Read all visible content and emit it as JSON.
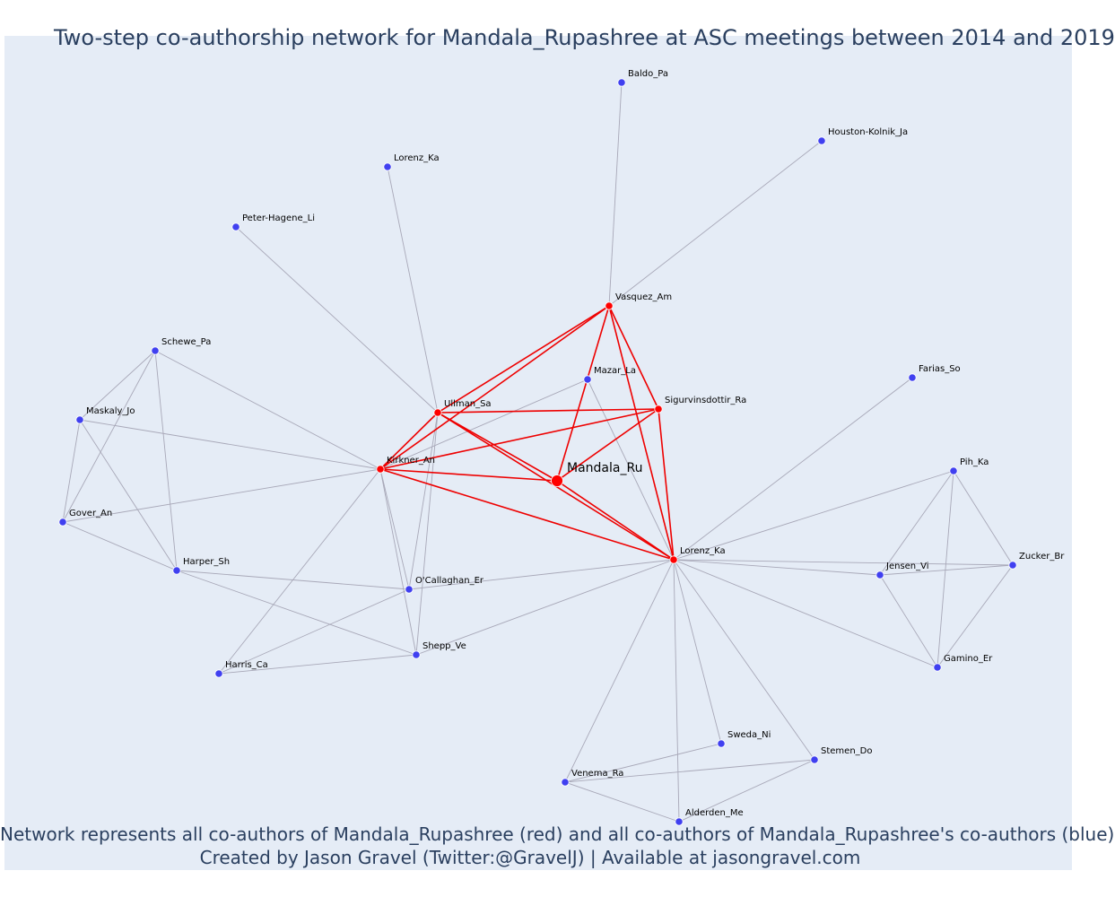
{
  "title": "Two-step co-authorship network for Mandala_Rupashree at ASC meetings between 2014 and 2019",
  "caption_line1": "Network represents all co-authors of Mandala_Rupashree (red) and all co-authors of Mandala_Rupashree's co-authors (blue)",
  "caption_line2": "Created by Jason Gravel (Twitter:@GravelJ) | Available at jasongravel.com",
  "colors": {
    "red": "#ff0000",
    "blue": "#4040f0",
    "edge_gray": "#a8a8b8",
    "edge_red": "#ee0000",
    "background": "#e5ecf6",
    "text": "#2a3f5f"
  },
  "focus": "mandala",
  "nodes": [
    {
      "id": "mandala",
      "label": "Mandala_Ru",
      "group": "red"
    },
    {
      "id": "vasquez",
      "label": "Vasquez_Am",
      "group": "red"
    },
    {
      "id": "ullman",
      "label": "Ullman_Sa",
      "group": "red"
    },
    {
      "id": "sigurvins",
      "label": "Sigurvinsdottir_Ra",
      "group": "red"
    },
    {
      "id": "kirkner",
      "label": "Kirkner_An",
      "group": "red"
    },
    {
      "id": "lorenz_r",
      "label": "Lorenz_Ka",
      "group": "red"
    },
    {
      "id": "baldo",
      "label": "Baldo_Pa",
      "group": "blue"
    },
    {
      "id": "houston",
      "label": "Houston-Kolnik_Ja",
      "group": "blue"
    },
    {
      "id": "lorenz_b",
      "label": "Lorenz_Ka",
      "group": "blue"
    },
    {
      "id": "peter",
      "label": "Peter-Hagene_Li",
      "group": "blue"
    },
    {
      "id": "schewe",
      "label": "Schewe_Pa",
      "group": "blue"
    },
    {
      "id": "mazar",
      "label": "Mazar_La",
      "group": "blue"
    },
    {
      "id": "farias",
      "label": "Farias_So",
      "group": "blue"
    },
    {
      "id": "maskaly",
      "label": "Maskaly_Jo",
      "group": "blue"
    },
    {
      "id": "pih",
      "label": "Pih_Ka",
      "group": "blue"
    },
    {
      "id": "gover",
      "label": "Gover_An",
      "group": "blue"
    },
    {
      "id": "zucker",
      "label": "Zucker_Br",
      "group": "blue"
    },
    {
      "id": "jensen",
      "label": "Jensen_Vi",
      "group": "blue"
    },
    {
      "id": "harper",
      "label": "Harper_Sh",
      "group": "blue"
    },
    {
      "id": "ocallaghan",
      "label": "O'Callaghan_Er",
      "group": "blue"
    },
    {
      "id": "shepp",
      "label": "Shepp_Ve",
      "group": "blue"
    },
    {
      "id": "harris",
      "label": "Harris_Ca",
      "group": "blue"
    },
    {
      "id": "gamino",
      "label": "Gamino_Er",
      "group": "blue"
    },
    {
      "id": "sweda",
      "label": "Sweda_Ni",
      "group": "blue"
    },
    {
      "id": "stemen",
      "label": "Stemen_Do",
      "group": "blue"
    },
    {
      "id": "venema",
      "label": "Venema_Ra",
      "group": "blue"
    },
    {
      "id": "alderden",
      "label": "Alderden_Me",
      "group": "blue"
    }
  ],
  "edges": [
    [
      "mandala",
      "vasquez"
    ],
    [
      "mandala",
      "ullman"
    ],
    [
      "mandala",
      "sigurvins"
    ],
    [
      "mandala",
      "kirkner"
    ],
    [
      "mandala",
      "lorenz_r"
    ],
    [
      "vasquez",
      "ullman"
    ],
    [
      "vasquez",
      "sigurvins"
    ],
    [
      "vasquez",
      "kirkner"
    ],
    [
      "vasquez",
      "lorenz_r"
    ],
    [
      "ullman",
      "sigurvins"
    ],
    [
      "ullman",
      "kirkner"
    ],
    [
      "ullman",
      "lorenz_r"
    ],
    [
      "sigurvins",
      "kirkner"
    ],
    [
      "sigurvins",
      "lorenz_r"
    ],
    [
      "kirkner",
      "lorenz_r"
    ],
    [
      "vasquez",
      "baldo"
    ],
    [
      "vasquez",
      "houston"
    ],
    [
      "ullman",
      "lorenz_b"
    ],
    [
      "ullman",
      "peter"
    ],
    [
      "ullman",
      "shepp"
    ],
    [
      "ullman",
      "ocallaghan"
    ],
    [
      "kirkner",
      "mazar"
    ],
    [
      "mazar",
      "lorenz_r"
    ],
    [
      "kirkner",
      "schewe"
    ],
    [
      "kirkner",
      "maskaly"
    ],
    [
      "kirkner",
      "gover"
    ],
    [
      "kirkner",
      "ocallaghan"
    ],
    [
      "kirkner",
      "shepp"
    ],
    [
      "kirkner",
      "harris"
    ],
    [
      "schewe",
      "maskaly"
    ],
    [
      "schewe",
      "gover"
    ],
    [
      "schewe",
      "harper"
    ],
    [
      "maskaly",
      "gover"
    ],
    [
      "maskaly",
      "harper"
    ],
    [
      "gover",
      "harper"
    ],
    [
      "harper",
      "ocallaghan"
    ],
    [
      "harper",
      "shepp"
    ],
    [
      "ocallaghan",
      "harris"
    ],
    [
      "ocallaghan",
      "lorenz_r"
    ],
    [
      "shepp",
      "harris"
    ],
    [
      "shepp",
      "lorenz_r"
    ],
    [
      "lorenz_r",
      "farias"
    ],
    [
      "lorenz_r",
      "pih"
    ],
    [
      "lorenz_r",
      "jensen"
    ],
    [
      "lorenz_r",
      "zucker"
    ],
    [
      "lorenz_r",
      "gamino"
    ],
    [
      "lorenz_r",
      "sweda"
    ],
    [
      "lorenz_r",
      "stemen"
    ],
    [
      "lorenz_r",
      "venema"
    ],
    [
      "lorenz_r",
      "alderden"
    ],
    [
      "pih",
      "jensen"
    ],
    [
      "pih",
      "zucker"
    ],
    [
      "pih",
      "gamino"
    ],
    [
      "jensen",
      "zucker"
    ],
    [
      "jensen",
      "gamino"
    ],
    [
      "zucker",
      "gamino"
    ],
    [
      "venema",
      "sweda"
    ],
    [
      "venema",
      "stemen"
    ],
    [
      "venema",
      "alderden"
    ],
    [
      "stemen",
      "alderden"
    ]
  ]
}
